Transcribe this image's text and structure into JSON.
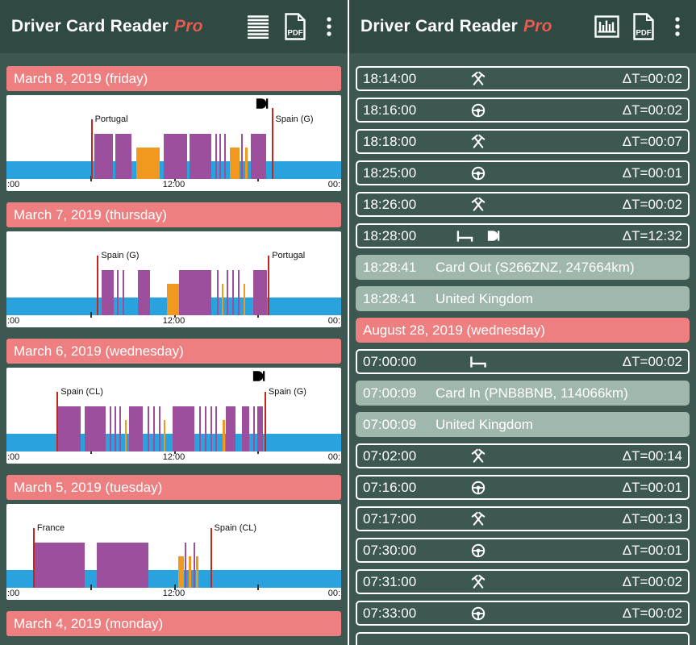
{
  "app": {
    "title": "Driver Card Reader",
    "pro": "Pro"
  },
  "colors": {
    "header_bg": "#2f4943",
    "body_bg": "#3d5751",
    "banner": "#ee7f80",
    "info_row": "#a0b7ab",
    "band_blue": "#2aa2dd",
    "drive_purple": "#9c4f9d",
    "work_orange": "#f0991e",
    "marker_red": "#c3251f",
    "card_bg": "#ffffff",
    "pro_accent": "#e65a50"
  },
  "header": {
    "left_icons": [
      "list-view-icon",
      "pdf-icon",
      "menu-icon"
    ],
    "right_icons": [
      "chart-view-icon",
      "pdf-icon",
      "menu-icon"
    ]
  },
  "axis": {
    "left": ":00",
    "center": "12:00",
    "right": "00:"
  },
  "days": [
    {
      "banner": "March 8, 2019 (friday)",
      "card_icon_h": 18.35,
      "markers": [
        {
          "h": 6.05,
          "label": "Portugal"
        },
        {
          "h": 19.0,
          "label": "Spain (G)",
          "tall": true
        }
      ],
      "segments": [
        {
          "s": 6.3,
          "e": 7.65,
          "t": "drive"
        },
        {
          "s": 7.8,
          "e": 8.95,
          "t": "drive"
        },
        {
          "s": 9.3,
          "e": 11.0,
          "t": "work"
        },
        {
          "s": 11.3,
          "e": 12.95,
          "t": "drive"
        },
        {
          "s": 13.15,
          "e": 14.7,
          "t": "drive"
        },
        {
          "s": 14.95,
          "e": 15.05,
          "t": "drive"
        },
        {
          "s": 15.25,
          "e": 15.35,
          "t": "drive"
        },
        {
          "s": 15.6,
          "e": 15.7,
          "t": "drive"
        },
        {
          "s": 16.0,
          "e": 16.7,
          "t": "work"
        },
        {
          "s": 16.85,
          "e": 16.95,
          "t": "drive"
        },
        {
          "s": 17.1,
          "e": 17.3,
          "t": "work"
        },
        {
          "s": 17.5,
          "e": 18.6,
          "t": "drive"
        }
      ]
    },
    {
      "banner": "March 7, 2019 (thursday)",
      "markers": [
        {
          "h": 6.5,
          "label": "Spain (G)"
        },
        {
          "h": 18.75,
          "label": "Portugal"
        }
      ],
      "segments": [
        {
          "s": 6.8,
          "e": 7.7,
          "t": "drive"
        },
        {
          "s": 7.9,
          "e": 8.05,
          "t": "drive"
        },
        {
          "s": 8.3,
          "e": 8.4,
          "t": "drive"
        },
        {
          "s": 9.4,
          "e": 10.3,
          "t": "drive"
        },
        {
          "s": 11.5,
          "e": 12.4,
          "t": "work"
        },
        {
          "s": 12.4,
          "e": 14.7,
          "t": "drive"
        },
        {
          "s": 15.1,
          "e": 15.2,
          "t": "drive"
        },
        {
          "s": 15.45,
          "e": 15.55,
          "t": "work"
        },
        {
          "s": 15.8,
          "e": 15.9,
          "t": "drive"
        },
        {
          "s": 16.2,
          "e": 16.3,
          "t": "drive"
        },
        {
          "s": 16.6,
          "e": 16.7,
          "t": "drive"
        },
        {
          "s": 17.0,
          "e": 17.1,
          "t": "work"
        },
        {
          "s": 17.7,
          "e": 18.7,
          "t": "drive"
        }
      ]
    },
    {
      "banner": "March 6, 2019 (wednesday)",
      "card_icon_h": 18.1,
      "markers": [
        {
          "h": 3.6,
          "label": "Spain (CL)"
        },
        {
          "h": 18.5,
          "label": "Spain (G)"
        }
      ],
      "segments": [
        {
          "s": 3.7,
          "e": 5.3,
          "t": "drive"
        },
        {
          "s": 5.6,
          "e": 7.1,
          "t": "drive"
        },
        {
          "s": 7.4,
          "e": 7.5,
          "t": "drive"
        },
        {
          "s": 7.75,
          "e": 7.85,
          "t": "drive"
        },
        {
          "s": 8.1,
          "e": 8.2,
          "t": "drive"
        },
        {
          "s": 8.5,
          "e": 8.6,
          "t": "work"
        },
        {
          "s": 8.8,
          "e": 9.8,
          "t": "drive"
        },
        {
          "s": 10.1,
          "e": 10.2,
          "t": "drive"
        },
        {
          "s": 10.5,
          "e": 10.6,
          "t": "drive"
        },
        {
          "s": 10.9,
          "e": 11.0,
          "t": "drive"
        },
        {
          "s": 11.3,
          "e": 11.4,
          "t": "work"
        },
        {
          "s": 11.9,
          "e": 13.5,
          "t": "drive"
        },
        {
          "s": 13.8,
          "e": 13.9,
          "t": "drive"
        },
        {
          "s": 14.2,
          "e": 14.3,
          "t": "drive"
        },
        {
          "s": 14.6,
          "e": 14.7,
          "t": "drive"
        },
        {
          "s": 15.0,
          "e": 15.1,
          "t": "drive"
        },
        {
          "s": 15.5,
          "e": 15.65,
          "t": "work"
        },
        {
          "s": 15.7,
          "e": 16.4,
          "t": "drive"
        },
        {
          "s": 16.9,
          "e": 17.4,
          "t": "drive"
        },
        {
          "s": 17.7,
          "e": 17.8,
          "t": "drive"
        },
        {
          "s": 18.0,
          "e": 18.4,
          "t": "drive"
        }
      ]
    },
    {
      "banner": "March 5, 2019 (tuesday)",
      "markers": [
        {
          "h": 1.9,
          "label": "France"
        },
        {
          "h": 14.6,
          "label": "Spain (CL)"
        }
      ],
      "segments": [
        {
          "s": 2.0,
          "e": 5.6,
          "t": "drive"
        },
        {
          "s": 6.5,
          "e": 10.2,
          "t": "drive"
        },
        {
          "s": 12.3,
          "e": 12.7,
          "t": "work"
        },
        {
          "s": 12.8,
          "e": 12.9,
          "t": "drive"
        },
        {
          "s": 13.05,
          "e": 13.25,
          "t": "work"
        },
        {
          "s": 13.4,
          "e": 13.5,
          "t": "drive"
        },
        {
          "s": 13.6,
          "e": 13.75,
          "t": "work"
        }
      ]
    },
    {
      "banner": "March 4, 2019 (monday)"
    }
  ],
  "events": [
    {
      "type": "event",
      "time": "18:14:00",
      "icons": [
        "work-icon"
      ],
      "delta": "ΔT=00:02"
    },
    {
      "type": "event",
      "time": "18:16:00",
      "icons": [
        "drive-icon"
      ],
      "delta": "ΔT=00:02"
    },
    {
      "type": "event",
      "time": "18:18:00",
      "icons": [
        "work-icon"
      ],
      "delta": "ΔT=00:07"
    },
    {
      "type": "event",
      "time": "18:25:00",
      "icons": [
        "drive-icon"
      ],
      "delta": "ΔT=00:01"
    },
    {
      "type": "event",
      "time": "18:26:00",
      "icons": [
        "work-icon"
      ],
      "delta": "ΔT=00:02"
    },
    {
      "type": "event",
      "time": "18:28:00",
      "icons": [
        "rest-icon",
        "card-icon"
      ],
      "delta": "ΔT=12:32"
    },
    {
      "type": "info",
      "time": "18:28:41",
      "text": "Card Out (S266ZNZ, 247664km)"
    },
    {
      "type": "info",
      "time": "18:28:41",
      "text": "United Kingdom"
    },
    {
      "type": "date",
      "text": "August 28, 2019 (wednesday)"
    },
    {
      "type": "event",
      "time": "07:00:00",
      "icons": [
        "rest-icon"
      ],
      "delta": "ΔT=00:02"
    },
    {
      "type": "info",
      "time": "07:00:09",
      "text": "Card In (PNB8BNB, 114066km)"
    },
    {
      "type": "info",
      "time": "07:00:09",
      "text": "United Kingdom"
    },
    {
      "type": "event",
      "time": "07:02:00",
      "icons": [
        "work-icon"
      ],
      "delta": "ΔT=00:14"
    },
    {
      "type": "event",
      "time": "07:16:00",
      "icons": [
        "drive-icon"
      ],
      "delta": "ΔT=00:01"
    },
    {
      "type": "event",
      "time": "07:17:00",
      "icons": [
        "work-icon"
      ],
      "delta": "ΔT=00:13"
    },
    {
      "type": "event",
      "time": "07:30:00",
      "icons": [
        "drive-icon"
      ],
      "delta": "ΔT=00:01"
    },
    {
      "type": "event",
      "time": "07:31:00",
      "icons": [
        "work-icon"
      ],
      "delta": "ΔT=00:02"
    },
    {
      "type": "event",
      "time": "07:33:00",
      "icons": [
        "drive-icon"
      ],
      "delta": "ΔT=00:02"
    },
    {
      "type": "clipped"
    }
  ]
}
